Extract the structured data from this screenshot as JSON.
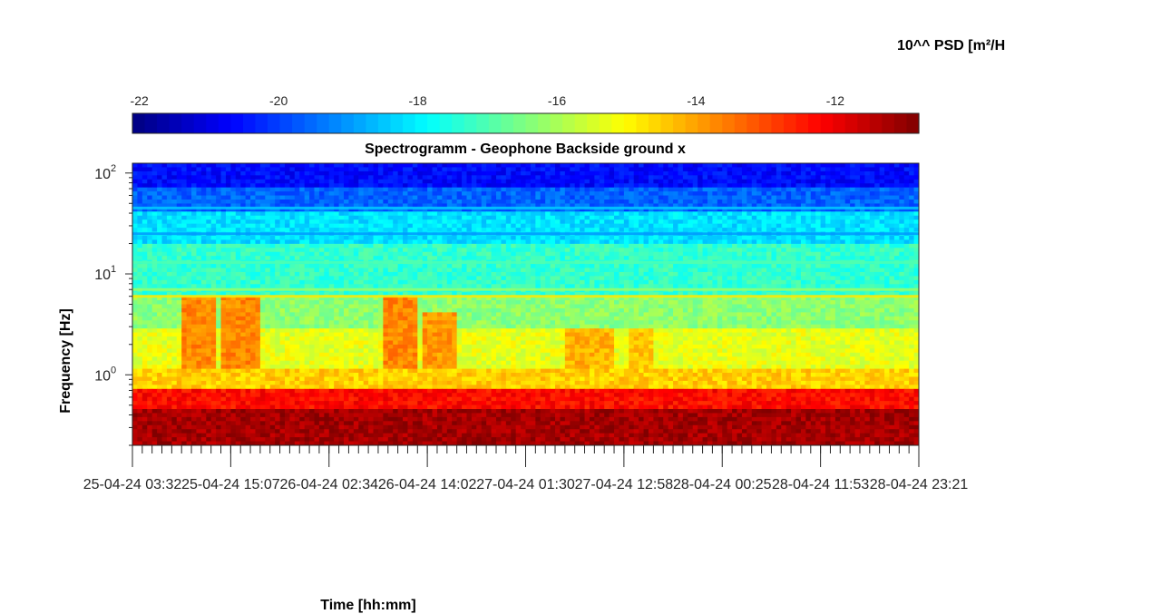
{
  "chart_data": {
    "type": "heatmap",
    "title": "Spectrogramm - Geophone Backside ground x",
    "xlabel": "Time [hh:mm]",
    "ylabel": "Frequency [Hz]",
    "colorbar_label": "10^^ PSD [m²/H",
    "colorbar": {
      "ticks": [
        -22,
        -20,
        -18,
        -16,
        -14,
        -12
      ],
      "tick_labels": [
        "-22",
        "-20",
        "-18",
        "-16",
        "-14",
        "-12"
      ],
      "range": [
        -22.1,
        -10.8
      ],
      "colormap": "jet",
      "placement": "top"
    },
    "x_tick_labels": [
      "25-04-24 03:32",
      "25-04-24 15:07",
      "26-04-24 02:34",
      "26-04-24 14:02",
      "27-04-24 01:30",
      "27-04-24 12:58",
      "28-04-24 00:25",
      "28-04-24 11:53",
      "28-04-24 23:21"
    ],
    "x_range": [
      "25-04-24 03:32",
      "28-04-24 23:21"
    ],
    "y_scale": "log",
    "y_range_hz": [
      0.2,
      125
    ],
    "y_ticks": [
      {
        "value": 1,
        "base": "10",
        "exp": "0"
      },
      {
        "value": 10,
        "base": "10",
        "exp": "1"
      },
      {
        "value": 100,
        "base": "10",
        "exp": "2"
      }
    ],
    "bands_log10_psd": [
      {
        "f_min": 0.2,
        "f_max": 0.45,
        "value": -11.2
      },
      {
        "f_min": 0.45,
        "f_max": 0.7,
        "value": -12.3
      },
      {
        "f_min": 0.7,
        "f_max": 1.1,
        "value": -14.5
      },
      {
        "f_min": 1.1,
        "f_max": 3,
        "value": -15.3
      },
      {
        "f_min": 3,
        "f_max": 6,
        "value": -16.3
      },
      {
        "f_min": 6,
        "f_max": 20,
        "value": -17.3
      },
      {
        "f_min": 20,
        "f_max": 40,
        "value": -18.2
      },
      {
        "f_min": 40,
        "f_max": 70,
        "value": -19.6
      },
      {
        "f_min": 70,
        "f_max": 125,
        "value": -20.6
      }
    ],
    "lines_log10_psd": [
      {
        "f": 6.0,
        "value": -14.8
      },
      {
        "f": 7.0,
        "value": -16.2
      },
      {
        "f": 13.0,
        "value": -17.0
      },
      {
        "f": 25.0,
        "value": -19.0
      },
      {
        "f": 45.0,
        "value": -18.4
      }
    ],
    "events": [
      {
        "t_start_frac": 0.06,
        "t_end_frac": 0.105,
        "f_max": 6,
        "value": -13.7
      },
      {
        "t_start_frac": 0.115,
        "t_end_frac": 0.16,
        "f_max": 6,
        "value": -13.7
      },
      {
        "t_start_frac": 0.32,
        "t_end_frac": 0.36,
        "f_max": 6,
        "value": -13.7
      },
      {
        "t_start_frac": 0.37,
        "t_end_frac": 0.415,
        "f_max": 4,
        "value": -13.9
      },
      {
        "t_start_frac": 0.55,
        "t_end_frac": 0.61,
        "f_max": 3,
        "value": -14.2
      },
      {
        "t_start_frac": 0.63,
        "t_end_frac": 0.665,
        "f_max": 3,
        "value": -14.4
      }
    ],
    "grid": false
  }
}
